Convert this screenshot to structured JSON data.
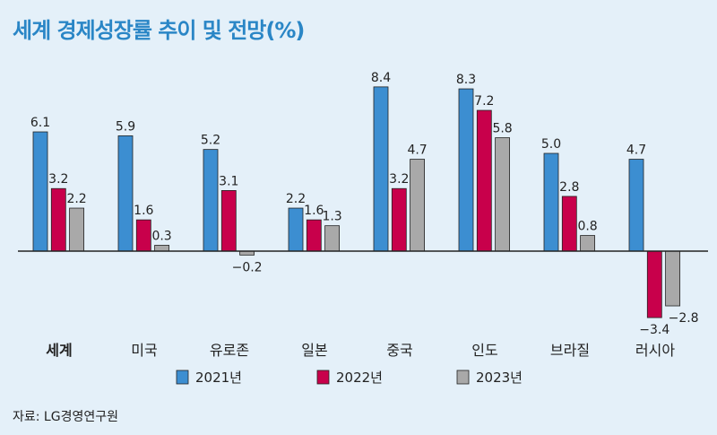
{
  "chart_data": {
    "type": "bar",
    "title": "세계 경제성장률 추이 및 전망(%)",
    "categories": [
      "세계",
      "미국",
      "유로존",
      "일본",
      "중국",
      "인도",
      "브라질",
      "러시아"
    ],
    "value_labels": [
      [
        "6.1",
        "3.2",
        "2.2"
      ],
      [
        "5.9",
        "1.6",
        "0.3"
      ],
      [
        "5.2",
        "3.1",
        "−0.2"
      ],
      [
        "2.2",
        "1.6",
        "1.3"
      ],
      [
        "8.4",
        "3.2",
        "4.7"
      ],
      [
        "8.3",
        "7.2",
        "5.8"
      ],
      [
        "5.0",
        "2.8",
        "0.8"
      ],
      [
        "4.7",
        "−3.4",
        "−2.8"
      ]
    ],
    "series": [
      {
        "name": "2021년",
        "color": "#3c8ed1",
        "values": [
          6.1,
          5.9,
          5.2,
          2.2,
          8.4,
          8.3,
          5.0,
          4.7
        ]
      },
      {
        "name": "2022년",
        "color": "#c8004b",
        "values": [
          3.2,
          1.6,
          3.1,
          1.6,
          3.2,
          7.2,
          2.8,
          -3.4
        ]
      },
      {
        "name": "2023년",
        "color": "#a9a9a9",
        "values": [
          2.2,
          0.3,
          -0.2,
          1.3,
          4.7,
          5.8,
          0.8,
          -2.8
        ]
      }
    ],
    "ylim": [
      -4,
      9
    ],
    "legend": "bottom",
    "xlabel": "",
    "ylabel": ""
  },
  "source": "자료: LG경영연구원"
}
